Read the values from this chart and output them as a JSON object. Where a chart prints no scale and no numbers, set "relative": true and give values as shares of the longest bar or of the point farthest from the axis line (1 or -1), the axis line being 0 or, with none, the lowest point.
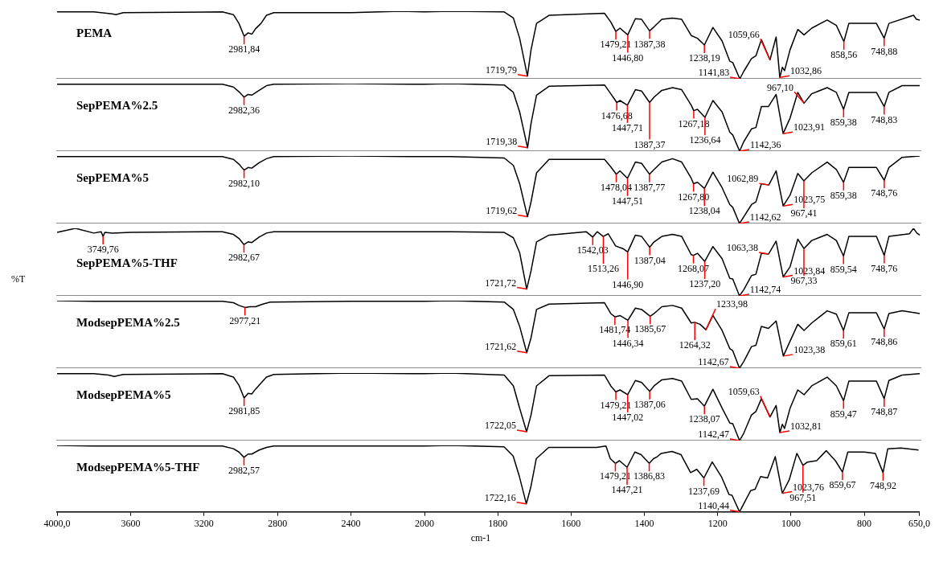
{
  "chart_data": [
    {
      "type": "line",
      "relative": true,
      "xlim": [
        4000,
        2000
      ],
      "tick_labels": false,
      "x": [
        4000,
        3800,
        3700,
        3680,
        3640,
        3100,
        3040,
        3010,
        2981.84,
        2960,
        2940,
        2920,
        2890,
        2860,
        2820,
        2400,
        2130,
        2000
      ],
      "series": [
        {
          "name": "PEMA",
          "color": "#000000",
          "values": [
            0.99,
            0.99,
            0.96,
            0.95,
            0.98,
            0.99,
            0.95,
            0.82,
            0.63,
            0.68,
            0.66,
            0.74,
            0.82,
            0.94,
            0.98,
            0.98,
            1.0,
            0.99
          ]
        }
      ],
      "annotations": [
        {
          "text": "2981,84",
          "x": 2981.84,
          "y": 0.63
        }
      ]
    },
    {
      "type": "line",
      "relative": true,
      "xlim": [
        2000,
        650
      ],
      "tick_labels": false,
      "x": [
        2000,
        1930,
        1783,
        1758,
        1741,
        1719.79,
        1710,
        1695,
        1661,
        1510,
        1493,
        1479.21,
        1468,
        1446.8,
        1426,
        1409,
        1387.38,
        1375,
        1354,
        1325,
        1300,
        1274,
        1257,
        1238.19,
        1215,
        1190,
        1169,
        1161,
        1141.83,
        1131,
        1110,
        1098,
        1083,
        1059.66,
        1043,
        1032.86,
        1026,
        1020,
        1005,
        984,
        967,
        946,
        904,
        879,
        858.56,
        845,
        770,
        748.88,
        736,
        669,
        661,
        652
      ],
      "series": [
        {
          "color": "#000000",
          "values": [
            0.99,
            1.0,
            0.99,
            0.9,
            0.6,
            0.04,
            0.43,
            0.82,
            0.94,
            0.97,
            0.84,
            0.7,
            0.75,
            0.65,
            0.89,
            0.88,
            0.71,
            0.77,
            0.88,
            0.9,
            0.88,
            0.64,
            0.6,
            0.5,
            0.76,
            0.56,
            0.26,
            0.24,
            0,
            0.11,
            0.3,
            0.34,
            0.58,
            0.28,
            0.62,
            0.02,
            0.17,
            0.12,
            0.43,
            0.73,
            0.65,
            0.75,
            0.87,
            0.79,
            0.55,
            0.82,
            0.82,
            0.6,
            0.82,
            0.94,
            0.88,
            0.87
          ]
        }
      ],
      "annotations": [
        {
          "text": "1719,79",
          "x": 1719.79,
          "y": 0.04
        },
        {
          "text": "1479,21",
          "x": 1479.21,
          "y": 0.7
        },
        {
          "text": "1446,80",
          "x": 1446.8,
          "y": 0.65
        },
        {
          "text": "1387,38",
          "x": 1387.38,
          "y": 0.71
        },
        {
          "text": "1238,19",
          "x": 1238.19,
          "y": 0.5
        },
        {
          "text": "1141,83",
          "x": 1141.83,
          "y": 0
        },
        {
          "text": "1059,66",
          "x": 1059.66,
          "y": 0.28
        },
        {
          "text": "1032,86",
          "x": 1032.86,
          "y": 0.02
        },
        {
          "text": "858,56",
          "x": 858.56,
          "y": 0.55
        },
        {
          "text": "748,88",
          "x": 748.88,
          "y": 0.6
        }
      ]
    },
    {
      "type": "line",
      "relative": true,
      "xlim": [
        4000,
        2000
      ],
      "tick_labels": false,
      "x": [
        4000,
        3800,
        3100,
        3040,
        3010,
        2982.36,
        2960,
        2940,
        2900,
        2860,
        2820,
        2400,
        2000
      ],
      "series": [
        {
          "name": "SepPEMA%2.5",
          "color": "#000000",
          "values": [
            0.99,
            0.99,
            0.99,
            0.95,
            0.88,
            0.8,
            0.84,
            0.83,
            0.9,
            0.97,
            0.99,
            1.0,
            0.99
          ]
        }
      ],
      "annotations": [
        {
          "text": "2982,36",
          "x": 2982.36,
          "y": 0.8
        }
      ]
    },
    {
      "type": "line",
      "relative": true,
      "xlim": [
        2000,
        650
      ],
      "tick_labels": false,
      "x": [
        2000,
        1930,
        1783,
        1758,
        1741,
        1719.38,
        1710,
        1695,
        1661,
        1510,
        1493,
        1476.68,
        1468,
        1447.71,
        1426,
        1409,
        1387.37,
        1375,
        1354,
        1325,
        1300,
        1274,
        1267.18,
        1257,
        1236.64,
        1215,
        1190,
        1169,
        1161,
        1142.36,
        1131,
        1110,
        1098,
        1083,
        1064,
        1043,
        1023.91,
        1005,
        984,
        967.1,
        946,
        904,
        879,
        859.38,
        845,
        770,
        748.83,
        736,
        700,
        652
      ],
      "series": [
        {
          "color": "#000000",
          "values": [
            0.99,
            1.0,
            0.98,
            0.87,
            0.58,
            0.05,
            0.41,
            0.83,
            0.96,
            0.98,
            0.85,
            0.72,
            0.75,
            0.68,
            0.91,
            0.89,
            0.72,
            0.8,
            0.9,
            0.94,
            0.91,
            0.68,
            0.6,
            0.62,
            0.5,
            0.75,
            0.58,
            0.28,
            0.24,
            0,
            0.14,
            0.33,
            0.35,
            0.66,
            0.66,
            0.84,
            0.26,
            0.49,
            0.87,
            0.71,
            0.85,
            0.94,
            0.87,
            0.62,
            0.87,
            0.87,
            0.66,
            0.87,
            0.97,
            0.97
          ]
        }
      ],
      "annotations": [
        {
          "text": "1719,38",
          "x": 1719.38,
          "y": 0.05
        },
        {
          "text": "1476,68",
          "x": 1476.68,
          "y": 0.72
        },
        {
          "text": "1447,71",
          "x": 1447.71,
          "y": 0.68
        },
        {
          "text": "1387,37",
          "x": 1387.37,
          "y": 0.72
        },
        {
          "text": "1267,18",
          "x": 1267.18,
          "y": 0.6
        },
        {
          "text": "1236,64",
          "x": 1236.64,
          "y": 0.5
        },
        {
          "text": "1142,36",
          "x": 1142.36,
          "y": 0
        },
        {
          "text": "1023,91",
          "x": 1023.91,
          "y": 0.26
        },
        {
          "text": "967,10",
          "x": 967.1,
          "y": 0.71
        },
        {
          "text": "859,38",
          "x": 859.38,
          "y": 0.62
        },
        {
          "text": "748,83",
          "x": 748.83,
          "y": 0.66
        }
      ]
    },
    {
      "type": "line",
      "relative": true,
      "xlim": [
        4000,
        2000
      ],
      "tick_labels": false,
      "x": [
        4000,
        3800,
        3100,
        3040,
        3010,
        2982.1,
        2960,
        2940,
        2900,
        2860,
        2820,
        2400,
        2000
      ],
      "series": [
        {
          "name": "SepPEMA%5",
          "color": "#000000",
          "values": [
            0.99,
            0.99,
            0.99,
            0.95,
            0.88,
            0.79,
            0.83,
            0.82,
            0.9,
            0.96,
            0.99,
            1.0,
            0.99
          ]
        }
      ],
      "annotations": [
        {
          "text": "2982,10",
          "x": 2982.1,
          "y": 0.79
        }
      ]
    },
    {
      "type": "line",
      "relative": true,
      "xlim": [
        2000,
        650
      ],
      "tick_labels": false,
      "x": [
        2000,
        1930,
        1783,
        1758,
        1741,
        1719.62,
        1710,
        1695,
        1661,
        1510,
        1493,
        1478.04,
        1468,
        1447.51,
        1426,
        1409,
        1387.77,
        1375,
        1354,
        1325,
        1300,
        1274,
        1267.8,
        1257,
        1238.04,
        1215,
        1190,
        1169,
        1161,
        1142.62,
        1131,
        1110,
        1098,
        1083,
        1062.89,
        1043,
        1023.75,
        1005,
        984,
        967.41,
        946,
        904,
        879,
        859.38,
        845,
        770,
        748.76,
        736,
        700,
        652
      ],
      "series": [
        {
          "color": "#000000",
          "values": [
            0.99,
            0.99,
            0.97,
            0.86,
            0.59,
            0.1,
            0.32,
            0.75,
            0.95,
            0.95,
            0.84,
            0.73,
            0.78,
            0.67,
            0.91,
            0.89,
            0.73,
            0.8,
            0.91,
            0.96,
            0.91,
            0.67,
            0.59,
            0.61,
            0.52,
            0.76,
            0.53,
            0.28,
            0.24,
            0,
            0.1,
            0.28,
            0.32,
            0.59,
            0.57,
            0.78,
            0.26,
            0.42,
            0.74,
            0.63,
            0.75,
            0.91,
            0.8,
            0.61,
            0.83,
            0.83,
            0.64,
            0.83,
            0.98,
            1.0
          ]
        }
      ],
      "annotations": [
        {
          "text": "1719,62",
          "x": 1719.62,
          "y": 0.1
        },
        {
          "text": "1478,04",
          "x": 1478.04,
          "y": 0.73
        },
        {
          "text": "1447,51",
          "x": 1447.51,
          "y": 0.67
        },
        {
          "text": "1387,77",
          "x": 1387.77,
          "y": 0.73
        },
        {
          "text": "1267,80",
          "x": 1267.8,
          "y": 0.59
        },
        {
          "text": "1238,04",
          "x": 1238.04,
          "y": 0.52
        },
        {
          "text": "1142,62",
          "x": 1142.62,
          "y": 0
        },
        {
          "text": "1062,89",
          "x": 1062.89,
          "y": 0.57
        },
        {
          "text": "1023,75",
          "x": 1023.75,
          "y": 0.26
        },
        {
          "text": "967,41",
          "x": 967.41,
          "y": 0.63
        },
        {
          "text": "859,38",
          "x": 859.38,
          "y": 0.61
        },
        {
          "text": "748,76",
          "x": 748.76,
          "y": 0.64
        }
      ]
    },
    {
      "type": "line",
      "relative": true,
      "ylabel": "%T",
      "xlim": [
        4000,
        2000
      ],
      "tick_labels": false,
      "x": [
        4000,
        3900,
        3800,
        3760,
        3749.76,
        3740,
        3700,
        3600,
        3100,
        3040,
        3010,
        2982.67,
        2960,
        2940,
        2900,
        2860,
        2820,
        2400,
        2000
      ],
      "series": [
        {
          "name": "SepPEMA%5-THF",
          "color": "#000000",
          "values": [
            0.94,
            1.0,
            0.93,
            0.95,
            0.88,
            0.94,
            0.93,
            0.94,
            0.95,
            0.91,
            0.85,
            0.76,
            0.8,
            0.79,
            0.87,
            0.93,
            0.95,
            0.95,
            0.95
          ]
        }
      ],
      "annotations": [
        {
          "text": "3749,76",
          "x": 3749.76,
          "y": 0.88
        },
        {
          "text": "2982,67",
          "x": 2982.67,
          "y": 0.76
        }
      ]
    },
    {
      "type": "line",
      "relative": true,
      "xlim": [
        2000,
        650
      ],
      "tick_labels": false,
      "x": [
        2000,
        1930,
        1783,
        1758,
        1741,
        1721.72,
        1710,
        1695,
        1661,
        1560,
        1542.03,
        1530,
        1513.26,
        1500,
        1480,
        1460,
        1446.9,
        1426,
        1409,
        1387.04,
        1375,
        1354,
        1325,
        1300,
        1274,
        1268.07,
        1257,
        1237.2,
        1215,
        1190,
        1169,
        1161,
        1142.74,
        1131,
        1110,
        1098,
        1083,
        1063.38,
        1043,
        1023.84,
        1005,
        984,
        967.33,
        946,
        904,
        879,
        859.54,
        845,
        770,
        748.76,
        736,
        680,
        669,
        660,
        652
      ],
      "series": [
        {
          "color": "#000000",
          "values": [
            0.95,
            0.95,
            0.94,
            0.86,
            0.64,
            0.1,
            0.37,
            0.8,
            0.9,
            0.95,
            0.87,
            0.95,
            0.88,
            0.92,
            0.74,
            0.7,
            0.65,
            0.9,
            0.88,
            0.72,
            0.8,
            0.88,
            0.91,
            0.88,
            0.61,
            0.6,
            0.63,
            0.51,
            0.73,
            0.55,
            0.26,
            0.25,
            0,
            0.09,
            0.3,
            0.32,
            0.63,
            0.62,
            0.81,
            0.28,
            0.43,
            0.84,
            0.7,
            0.82,
            0.91,
            0.82,
            0.59,
            0.88,
            0.88,
            0.6,
            0.88,
            0.92,
            1.0,
            0.93,
            0.9
          ]
        }
      ],
      "annotations": [
        {
          "text": "1721,72",
          "x": 1721.72,
          "y": 0.1
        },
        {
          "text": "1542,03",
          "x": 1542.03,
          "y": 0.87
        },
        {
          "text": "1513,26",
          "x": 1513.26,
          "y": 0.88
        },
        {
          "text": "1446,90",
          "x": 1446.9,
          "y": 0.65
        },
        {
          "text": "1387,04",
          "x": 1387.04,
          "y": 0.72
        },
        {
          "text": "1268,07",
          "x": 1268.07,
          "y": 0.6
        },
        {
          "text": "1237,20",
          "x": 1237.2,
          "y": 0.51
        },
        {
          "text": "1142,74",
          "x": 1142.74,
          "y": 0
        },
        {
          "text": "1063,38",
          "x": 1063.38,
          "y": 0.62
        },
        {
          "text": "1023,84",
          "x": 1023.84,
          "y": 0.28
        },
        {
          "text": "967,33",
          "x": 967.33,
          "y": 0.7
        },
        {
          "text": "859,54",
          "x": 859.54,
          "y": 0.59
        },
        {
          "text": "748,76",
          "x": 748.76,
          "y": 0.6
        }
      ]
    },
    {
      "type": "line",
      "relative": true,
      "xlim": [
        4000,
        2000
      ],
      "tick_labels": false,
      "x": [
        4000,
        3800,
        3100,
        3040,
        3010,
        2977.21,
        2950,
        2920,
        2880,
        2840,
        2400,
        2000
      ],
      "series": [
        {
          "name": "ModsepPEMA%2.5",
          "color": "#000000",
          "values": [
            1.0,
            0.99,
            0.99,
            0.97,
            0.93,
            0.9,
            0.91,
            0.91,
            0.95,
            0.98,
            0.99,
            0.99
          ]
        }
      ],
      "annotations": [
        {
          "text": "2977,21",
          "x": 2977.21,
          "y": 0.9
        }
      ]
    },
    {
      "type": "line",
      "relative": true,
      "xlim": [
        2000,
        650
      ],
      "tick_labels": false,
      "x": [
        2000,
        1930,
        1783,
        1758,
        1741,
        1721.62,
        1710,
        1695,
        1661,
        1510,
        1493,
        1481.74,
        1468,
        1446.34,
        1426,
        1409,
        1385.67,
        1375,
        1354,
        1325,
        1300,
        1274,
        1264.32,
        1250,
        1233.98,
        1215,
        1190,
        1169,
        1161,
        1142.67,
        1131,
        1110,
        1098,
        1083,
        1064,
        1043,
        1023.38,
        1005,
        984,
        967,
        946,
        904,
        879,
        859.61,
        845,
        770,
        748.86,
        736,
        700,
        652
      ],
      "series": [
        {
          "color": "#000000",
          "values": [
            0.99,
            1.0,
            0.98,
            0.87,
            0.62,
            0.23,
            0.45,
            0.87,
            0.95,
            0.97,
            0.81,
            0.76,
            0.78,
            0.71,
            0.89,
            0.87,
            0.77,
            0.81,
            0.91,
            0.93,
            0.89,
            0.67,
            0.68,
            0.65,
            0.57,
            0.78,
            0.56,
            0.29,
            0.26,
            0,
            0.1,
            0.32,
            0.34,
            0.62,
            0.59,
            0.7,
            0.18,
            0.4,
            0.65,
            0.56,
            0.67,
            0.85,
            0.8,
            0.56,
            0.82,
            0.82,
            0.58,
            0.81,
            0.85,
            0.81
          ]
        }
      ],
      "annotations": [
        {
          "text": "1721,62",
          "x": 1721.62,
          "y": 0.23
        },
        {
          "text": "1481,74",
          "x": 1481.74,
          "y": 0.76
        },
        {
          "text": "1446,34",
          "x": 1446.34,
          "y": 0.71
        },
        {
          "text": "1385,67",
          "x": 1385.67,
          "y": 0.77
        },
        {
          "text": "1264,32",
          "x": 1264.32,
          "y": 0.68
        },
        {
          "text": "1233,98",
          "x": 1233.98,
          "y": 0.57
        },
        {
          "text": "1142,67",
          "x": 1142.67,
          "y": 0
        },
        {
          "text": "1023,38",
          "x": 1023.38,
          "y": 0.18
        },
        {
          "text": "859,61",
          "x": 859.61,
          "y": 0.56
        },
        {
          "text": "748,86",
          "x": 748.86,
          "y": 0.58
        }
      ]
    },
    {
      "type": "line",
      "relative": true,
      "xlim": [
        4000,
        2000
      ],
      "tick_labels": false,
      "x": [
        4000,
        3800,
        3720,
        3689,
        3640,
        3100,
        3040,
        3010,
        2981.85,
        2960,
        2940,
        2920,
        2890,
        2860,
        2820,
        2400,
        2000
      ],
      "series": [
        {
          "name": "ModsepPEMA%5",
          "color": "#000000",
          "values": [
            0.99,
            0.99,
            0.97,
            0.95,
            0.98,
            0.99,
            0.94,
            0.82,
            0.63,
            0.7,
            0.69,
            0.76,
            0.85,
            0.94,
            0.98,
            1.0,
            0.99
          ]
        }
      ],
      "annotations": [
        {
          "text": "2981,85",
          "x": 2981.85,
          "y": 0.63
        }
      ]
    },
    {
      "type": "line",
      "relative": true,
      "xlim": [
        2000,
        650
      ],
      "tick_labels": false,
      "x": [
        2000,
        1930,
        1783,
        1758,
        1741,
        1722.05,
        1710,
        1695,
        1661,
        1510,
        1493,
        1479.21,
        1468,
        1447.02,
        1426,
        1409,
        1387.06,
        1375,
        1354,
        1325,
        1300,
        1274,
        1257,
        1238.07,
        1215,
        1190,
        1169,
        1161,
        1142.47,
        1131,
        1110,
        1098,
        1083,
        1059.63,
        1043,
        1032.81,
        1026,
        1020,
        1005,
        984,
        967,
        946,
        904,
        879,
        859.47,
        845,
        770,
        748.87,
        736,
        700,
        652
      ],
      "series": [
        {
          "color": "#000000",
          "values": [
            0.99,
            1.0,
            0.97,
            0.81,
            0.48,
            0.13,
            0.38,
            0.81,
            0.96,
            0.97,
            0.81,
            0.72,
            0.75,
            0.68,
            0.89,
            0.86,
            0.73,
            0.81,
            0.9,
            0.92,
            0.88,
            0.61,
            0.62,
            0.51,
            0.76,
            0.48,
            0.26,
            0.25,
            0,
            0.11,
            0.38,
            0.43,
            0.62,
            0.35,
            0.52,
            0.12,
            0.24,
            0.18,
            0.48,
            0.75,
            0.68,
            0.81,
            0.94,
            0.81,
            0.59,
            0.88,
            0.88,
            0.62,
            0.89,
            0.97,
            0.99
          ]
        }
      ],
      "annotations": [
        {
          "text": "1722,05",
          "x": 1722.05,
          "y": 0.13
        },
        {
          "text": "1479,21",
          "x": 1479.21,
          "y": 0.72
        },
        {
          "text": "1447,02",
          "x": 1447.02,
          "y": 0.68
        },
        {
          "text": "1387,06",
          "x": 1387.06,
          "y": 0.73
        },
        {
          "text": "1238,07",
          "x": 1238.07,
          "y": 0.51
        },
        {
          "text": "1142,47",
          "x": 1142.47,
          "y": 0
        },
        {
          "text": "1059,63",
          "x": 1059.63,
          "y": 0.35
        },
        {
          "text": "1032,81",
          "x": 1032.81,
          "y": 0.12
        },
        {
          "text": "859,47",
          "x": 859.47,
          "y": 0.59
        },
        {
          "text": "748,87",
          "x": 748.87,
          "y": 0.62
        }
      ]
    },
    {
      "type": "line",
      "relative": true,
      "xlim": [
        4000,
        2000
      ],
      "xticks": [
        {
          "value": 4000,
          "label": "4000,0"
        },
        3600,
        3200,
        2800,
        2400,
        2000
      ],
      "tick_labels": "x",
      "x": [
        4000,
        3800,
        3100,
        3040,
        3010,
        2982.57,
        2960,
        2940,
        2900,
        2860,
        2820,
        2400,
        2000
      ],
      "series": [
        {
          "name": "ModsepPEMA%5-THF",
          "color": "#000000",
          "values": [
            1.0,
            0.99,
            0.99,
            0.95,
            0.9,
            0.82,
            0.87,
            0.87,
            0.93,
            0.97,
            0.99,
            0.99,
            0.99
          ]
        }
      ],
      "annotations": [
        {
          "text": "2982,57",
          "x": 2982.57,
          "y": 0.82
        }
      ]
    },
    {
      "type": "line",
      "relative": true,
      "xlabel": "cm-1",
      "xlim": [
        2000,
        650
      ],
      "xticks": [
        1800,
        1600,
        1400,
        1200,
        1000,
        800,
        {
          "value": 650,
          "label": "650,0"
        }
      ],
      "tick_labels": "x",
      "x": [
        2000,
        1930,
        1783,
        1758,
        1741,
        1722.16,
        1710,
        1695,
        1661,
        1530,
        1505,
        1493,
        1479.21,
        1468,
        1447.21,
        1426,
        1409,
        1386.83,
        1375,
        1365,
        1354,
        1325,
        1300,
        1274,
        1257,
        1237.69,
        1215,
        1190,
        1169,
        1161,
        1140.44,
        1131,
        1110,
        1098,
        1083,
        1064,
        1043,
        1023.76,
        1005,
        984,
        967.51,
        955,
        930,
        904,
        879,
        859.67,
        845,
        800,
        770,
        748.92,
        736,
        700,
        652
      ],
      "series": [
        {
          "color": "#000000",
          "values": [
            0.99,
            1.0,
            0.98,
            0.84,
            0.53,
            0.12,
            0.37,
            0.8,
            0.97,
            0.97,
            0.99,
            0.8,
            0.73,
            0.77,
            0.67,
            0.9,
            0.86,
            0.73,
            0.8,
            0.83,
            0.88,
            0.91,
            0.86,
            0.59,
            0.64,
            0.51,
            0.75,
            0.53,
            0.26,
            0.25,
            0,
            0.1,
            0.32,
            0.34,
            0.53,
            0.51,
            0.83,
            0.28,
            0.48,
            0.88,
            0.7,
            0.75,
            0.77,
            0.92,
            0.77,
            0.6,
            0.9,
            0.9,
            0.88,
            0.59,
            0.95,
            0.96,
            0.93
          ]
        }
      ],
      "annotations": [
        {
          "text": "1722,16",
          "x": 1722.16,
          "y": 0.12
        },
        {
          "text": "1479,21",
          "x": 1479.21,
          "y": 0.73
        },
        {
          "text": "1447,21",
          "x": 1447.21,
          "y": 0.67
        },
        {
          "text": "1386,83",
          "x": 1386.83,
          "y": 0.73
        },
        {
          "text": "1237,69",
          "x": 1237.69,
          "y": 0.51
        },
        {
          "text": "1140,44",
          "x": 1140.44,
          "y": 0
        },
        {
          "text": "1023,76",
          "x": 1023.76,
          "y": 0.28
        },
        {
          "text": "967,51",
          "x": 967.51,
          "y": 0.7
        },
        {
          "text": "859,67",
          "x": 859.67,
          "y": 0.6
        },
        {
          "text": "748,92",
          "x": 748.92,
          "y": 0.59
        }
      ]
    }
  ]
}
